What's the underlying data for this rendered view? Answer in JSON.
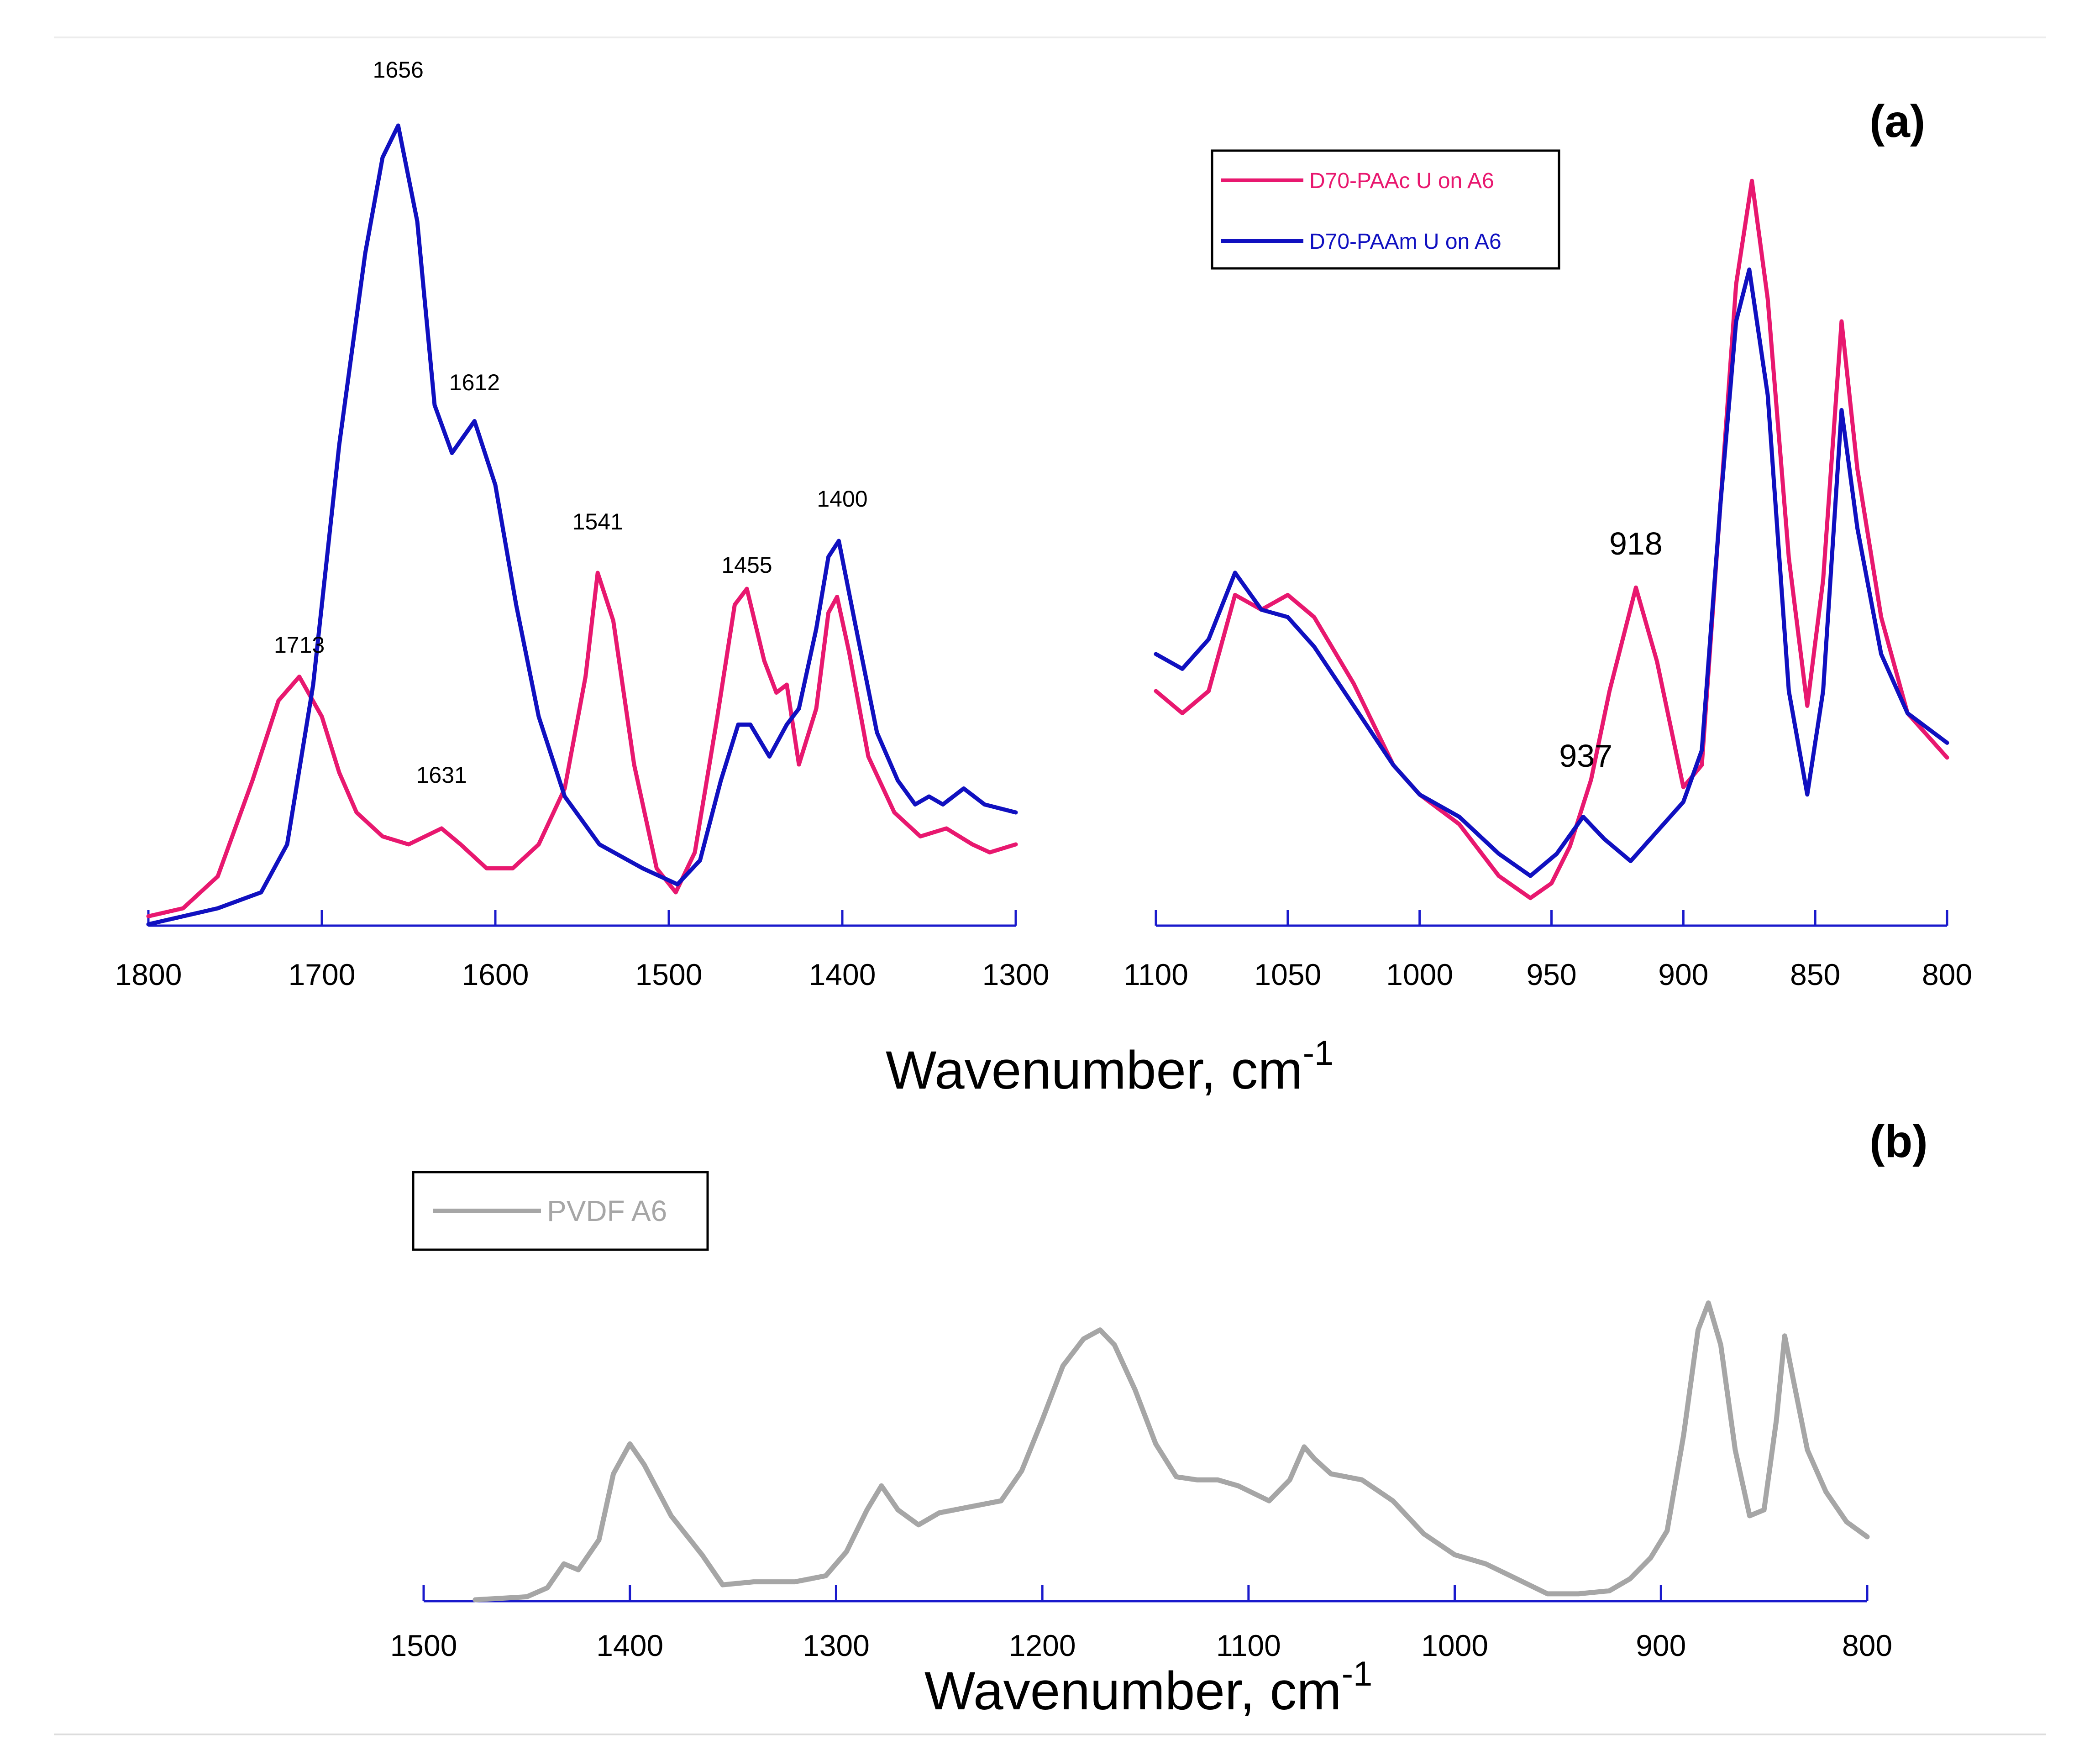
{
  "chart_data": [
    {
      "panel": "(a)",
      "type": "line",
      "x_range": [
        1800,
        1300
      ],
      "ticks": [
        "1800",
        "1700",
        "1600",
        "1500",
        "1400",
        "1300"
      ],
      "xlabel": "Wavenumber, cm",
      "xlabel_superscript": "-1",
      "legend": [
        "D70-PAAc U on A6",
        "D70-PAAm U on A6"
      ],
      "annotations": [
        {
          "text": "1713",
          "x": 1713
        },
        {
          "text": "1656",
          "x": 1656
        },
        {
          "text": "1612",
          "x": 1612
        },
        {
          "text": "1631",
          "x": 1631
        },
        {
          "text": "1541",
          "x": 1541
        },
        {
          "text": "1455",
          "x": 1455
        },
        {
          "text": "1400",
          "x": 1400
        }
      ],
      "series": [
        {
          "name": "D70-PAAc U on A6",
          "color": "#e8186f",
          "points": [
            [
              1800,
              0.01
            ],
            [
              1780,
              0.02
            ],
            [
              1760,
              0.06
            ],
            [
              1740,
              0.18
            ],
            [
              1725,
              0.28
            ],
            [
              1713,
              0.31
            ],
            [
              1700,
              0.26
            ],
            [
              1690,
              0.19
            ],
            [
              1680,
              0.14
            ],
            [
              1665,
              0.11
            ],
            [
              1650,
              0.1
            ],
            [
              1631,
              0.12
            ],
            [
              1620,
              0.1
            ],
            [
              1605,
              0.07
            ],
            [
              1590,
              0.07
            ],
            [
              1575,
              0.1
            ],
            [
              1560,
              0.17
            ],
            [
              1548,
              0.31
            ],
            [
              1541,
              0.44
            ],
            [
              1532,
              0.38
            ],
            [
              1520,
              0.2
            ],
            [
              1507,
              0.07
            ],
            [
              1496,
              0.04
            ],
            [
              1485,
              0.09
            ],
            [
              1472,
              0.26
            ],
            [
              1462,
              0.4
            ],
            [
              1455,
              0.42
            ],
            [
              1445,
              0.33
            ],
            [
              1438,
              0.29
            ],
            [
              1432,
              0.3
            ],
            [
              1425,
              0.2
            ],
            [
              1415,
              0.27
            ],
            [
              1408,
              0.39
            ],
            [
              1403,
              0.41
            ],
            [
              1396,
              0.34
            ],
            [
              1385,
              0.21
            ],
            [
              1370,
              0.14
            ],
            [
              1355,
              0.11
            ],
            [
              1340,
              0.12
            ],
            [
              1325,
              0.1
            ],
            [
              1315,
              0.09
            ],
            [
              1300,
              0.1
            ]
          ]
        },
        {
          "name": "D70-PAAm U on A6",
          "color": "#1010c0",
          "points": [
            [
              1800,
              0.0
            ],
            [
              1760,
              0.02
            ],
            [
              1735,
              0.04
            ],
            [
              1720,
              0.1
            ],
            [
              1705,
              0.3
            ],
            [
              1690,
              0.6
            ],
            [
              1675,
              0.84
            ],
            [
              1665,
              0.96
            ],
            [
              1656,
              1.0
            ],
            [
              1645,
              0.88
            ],
            [
              1635,
              0.65
            ],
            [
              1625,
              0.59
            ],
            [
              1612,
              0.63
            ],
            [
              1600,
              0.55
            ],
            [
              1588,
              0.4
            ],
            [
              1575,
              0.26
            ],
            [
              1560,
              0.16
            ],
            [
              1540,
              0.1
            ],
            [
              1515,
              0.07
            ],
            [
              1495,
              0.05
            ],
            [
              1482,
              0.08
            ],
            [
              1470,
              0.18
            ],
            [
              1460,
              0.25
            ],
            [
              1453,
              0.25
            ],
            [
              1442,
              0.21
            ],
            [
              1432,
              0.25
            ],
            [
              1425,
              0.27
            ],
            [
              1415,
              0.37
            ],
            [
              1408,
              0.46
            ],
            [
              1402,
              0.48
            ],
            [
              1392,
              0.37
            ],
            [
              1380,
              0.24
            ],
            [
              1368,
              0.18
            ],
            [
              1358,
              0.15
            ],
            [
              1350,
              0.16
            ],
            [
              1342,
              0.15
            ],
            [
              1330,
              0.17
            ],
            [
              1318,
              0.15
            ],
            [
              1300,
              0.14
            ]
          ]
        }
      ]
    },
    {
      "panel": "(a)",
      "type": "line",
      "x_range": [
        1100,
        800
      ],
      "ticks": [
        "1100",
        "1050",
        "1000",
        "950",
        "900",
        "850",
        "800"
      ],
      "annotations": [
        {
          "text": "918",
          "x": 918
        },
        {
          "text": "937",
          "x": 937
        }
      ],
      "series": [
        {
          "name": "D70-PAAc U on A6",
          "color": "#e8186f",
          "points": [
            [
              1100,
              0.3
            ],
            [
              1090,
              0.27
            ],
            [
              1080,
              0.3
            ],
            [
              1070,
              0.43
            ],
            [
              1060,
              0.41
            ],
            [
              1050,
              0.43
            ],
            [
              1040,
              0.4
            ],
            [
              1025,
              0.31
            ],
            [
              1010,
              0.2
            ],
            [
              1000,
              0.16
            ],
            [
              985,
              0.12
            ],
            [
              970,
              0.05
            ],
            [
              958,
              0.02
            ],
            [
              950,
              0.04
            ],
            [
              943,
              0.09
            ],
            [
              935,
              0.18
            ],
            [
              928,
              0.3
            ],
            [
              918,
              0.44
            ],
            [
              910,
              0.34
            ],
            [
              900,
              0.17
            ],
            [
              893,
              0.2
            ],
            [
              886,
              0.55
            ],
            [
              880,
              0.85
            ],
            [
              874,
              0.99
            ],
            [
              868,
              0.83
            ],
            [
              860,
              0.48
            ],
            [
              853,
              0.28
            ],
            [
              847,
              0.45
            ],
            [
              840,
              0.8
            ],
            [
              834,
              0.6
            ],
            [
              825,
              0.4
            ],
            [
              815,
              0.27
            ],
            [
              800,
              0.21
            ]
          ]
        },
        {
          "name": "D70-PAAm U on A6",
          "color": "#1010c0",
          "points": [
            [
              1100,
              0.35
            ],
            [
              1090,
              0.33
            ],
            [
              1080,
              0.37
            ],
            [
              1070,
              0.46
            ],
            [
              1060,
              0.41
            ],
            [
              1050,
              0.4
            ],
            [
              1040,
              0.36
            ],
            [
              1025,
              0.28
            ],
            [
              1010,
              0.2
            ],
            [
              1000,
              0.16
            ],
            [
              985,
              0.13
            ],
            [
              970,
              0.08
            ],
            [
              958,
              0.05
            ],
            [
              948,
              0.08
            ],
            [
              938,
              0.13
            ],
            [
              930,
              0.1
            ],
            [
              920,
              0.07
            ],
            [
              910,
              0.11
            ],
            [
              900,
              0.15
            ],
            [
              893,
              0.22
            ],
            [
              886,
              0.55
            ],
            [
              880,
              0.8
            ],
            [
              875,
              0.87
            ],
            [
              868,
              0.7
            ],
            [
              860,
              0.3
            ],
            [
              853,
              0.16
            ],
            [
              847,
              0.3
            ],
            [
              840,
              0.68
            ],
            [
              834,
              0.52
            ],
            [
              825,
              0.35
            ],
            [
              815,
              0.27
            ],
            [
              800,
              0.23
            ]
          ]
        }
      ]
    },
    {
      "panel": "(b)",
      "type": "line",
      "x_range": [
        1500,
        800
      ],
      "ticks": [
        "1500",
        "1400",
        "1300",
        "1200",
        "1100",
        "1000",
        "900",
        "800"
      ],
      "xlabel": "Wavenumber, cm",
      "xlabel_superscript": "-1",
      "legend": [
        "PVDF A6"
      ],
      "series": [
        {
          "name": "PVDF A6",
          "color": "#a6a6a6",
          "points": [
            [
              1475,
              0.0
            ],
            [
              1450,
              0.01
            ],
            [
              1440,
              0.04
            ],
            [
              1432,
              0.12
            ],
            [
              1425,
              0.1
            ],
            [
              1415,
              0.2
            ],
            [
              1408,
              0.42
            ],
            [
              1400,
              0.52
            ],
            [
              1393,
              0.45
            ],
            [
              1380,
              0.28
            ],
            [
              1365,
              0.15
            ],
            [
              1355,
              0.05
            ],
            [
              1340,
              0.06
            ],
            [
              1320,
              0.06
            ],
            [
              1305,
              0.08
            ],
            [
              1295,
              0.16
            ],
            [
              1285,
              0.3
            ],
            [
              1278,
              0.38
            ],
            [
              1270,
              0.3
            ],
            [
              1260,
              0.25
            ],
            [
              1250,
              0.29
            ],
            [
              1235,
              0.31
            ],
            [
              1220,
              0.33
            ],
            [
              1210,
              0.43
            ],
            [
              1200,
              0.6
            ],
            [
              1190,
              0.78
            ],
            [
              1180,
              0.87
            ],
            [
              1172,
              0.9
            ],
            [
              1165,
              0.85
            ],
            [
              1155,
              0.7
            ],
            [
              1145,
              0.52
            ],
            [
              1135,
              0.41
            ],
            [
              1125,
              0.4
            ],
            [
              1115,
              0.4
            ],
            [
              1105,
              0.38
            ],
            [
              1090,
              0.33
            ],
            [
              1080,
              0.4
            ],
            [
              1073,
              0.51
            ],
            [
              1068,
              0.47
            ],
            [
              1060,
              0.42
            ],
            [
              1045,
              0.4
            ],
            [
              1030,
              0.33
            ],
            [
              1015,
              0.22
            ],
            [
              1000,
              0.15
            ],
            [
              985,
              0.12
            ],
            [
              970,
              0.07
            ],
            [
              955,
              0.02
            ],
            [
              940,
              0.02
            ],
            [
              925,
              0.03
            ],
            [
              915,
              0.07
            ],
            [
              905,
              0.14
            ],
            [
              897,
              0.23
            ],
            [
              889,
              0.55
            ],
            [
              882,
              0.9
            ],
            [
              877,
              0.99
            ],
            [
              871,
              0.85
            ],
            [
              864,
              0.5
            ],
            [
              857,
              0.28
            ],
            [
              850,
              0.3
            ],
            [
              844,
              0.6
            ],
            [
              840,
              0.88
            ],
            [
              836,
              0.74
            ],
            [
              829,
              0.5
            ],
            [
              820,
              0.36
            ],
            [
              810,
              0.26
            ],
            [
              800,
              0.21
            ]
          ]
        }
      ]
    }
  ],
  "panel_labels": {
    "a": "(a)",
    "b": "(b)"
  }
}
